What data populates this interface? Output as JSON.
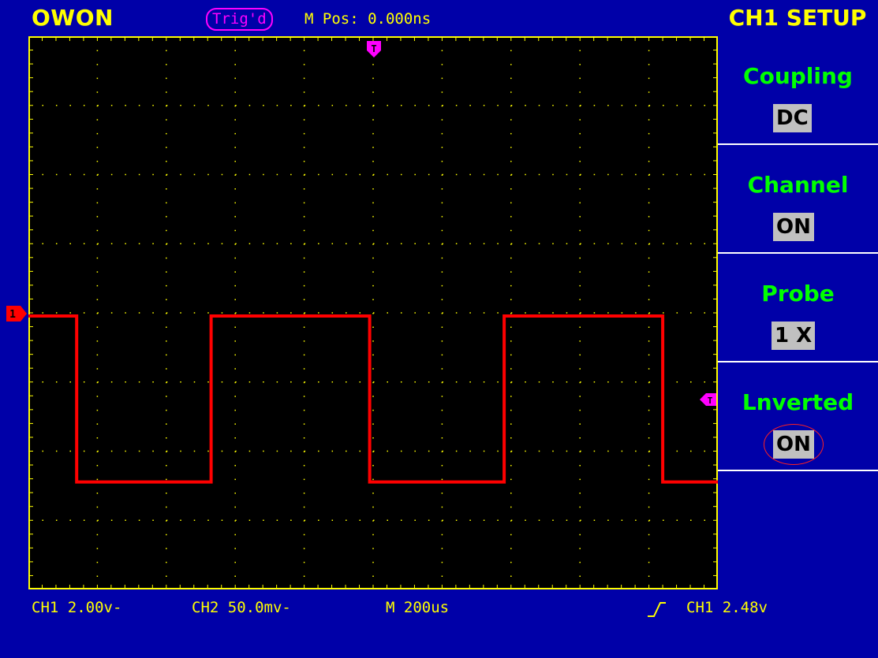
{
  "header": {
    "brand": "OWON",
    "trigger_status": "Trig'd",
    "mpos": "M Pos: 0.000ns",
    "menu_title": "CH1 SETUP"
  },
  "markers": {
    "trigger_pos": "T",
    "ch1": "1",
    "trigger_level": "T"
  },
  "menu": {
    "items": [
      {
        "label": "Coupling",
        "value": "DC"
      },
      {
        "label": "Channel",
        "value": "ON"
      },
      {
        "label": "Probe",
        "value": "1 X"
      },
      {
        "label": "Lnverted",
        "value": "ON"
      }
    ]
  },
  "status_bar": {
    "ch1": "CH1 2.00v-",
    "ch2": "CH2 50.0mv-",
    "timebase": "M 200us",
    "trigger": "CH1 2.48v"
  },
  "colors": {
    "background": "#0000a8",
    "screen": "#000000",
    "grid": "#ffff00",
    "trace": "#ff0000",
    "marker": "#ff00ff",
    "menu_label": "#00ff00"
  },
  "chart_data": {
    "type": "line",
    "title": "",
    "xlabel": "",
    "ylabel": "",
    "x_divisions": 10,
    "y_divisions": 8,
    "series": [
      {
        "x": [
          0,
          0.7,
          0.7,
          2.65,
          2.65,
          4.95,
          4.95,
          6.9,
          6.9,
          9.2,
          9.2,
          10
        ],
        "y": [
          0,
          0,
          -2.4,
          -2.4,
          0,
          0,
          -2.4,
          -2.4,
          0,
          0,
          -2.4,
          -2.4
        ]
      }
    ]
  }
}
